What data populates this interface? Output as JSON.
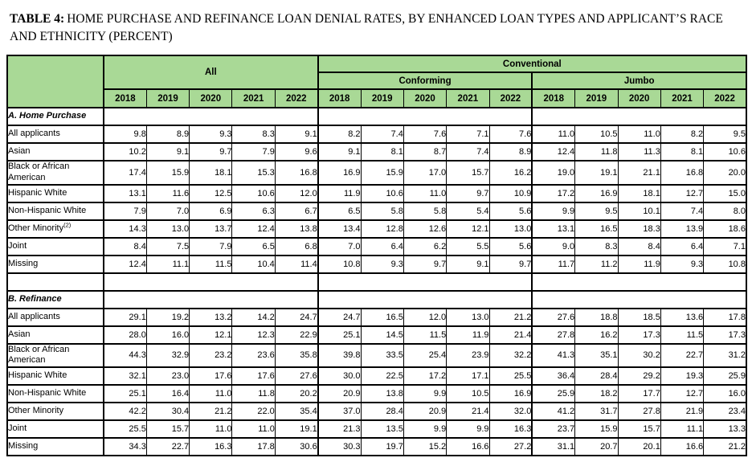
{
  "title": {
    "prefix": "TABLE 4:",
    "text": "HOME PURCHASE AND REFINANCE LOAN DENIAL RATES, BY ENHANCED LOAN TYPES AND APPLICANT’S RACE AND ETHNICITY (PERCENT)"
  },
  "colors": {
    "header_green": "#a9d996",
    "border": "#000000",
    "background": "#ffffff"
  },
  "header": {
    "all": "All",
    "conventional": "Conventional",
    "conforming": "Conforming",
    "jumbo": "Jumbo"
  },
  "chart_data": {
    "type": "table",
    "title": "TABLE 4: HOME PURCHASE AND REFINANCE LOAN DENIAL RATES, BY ENHANCED LOAN TYPES AND APPLICANT’S RACE AND ETHNICITY (PERCENT)",
    "col_groups": [
      {
        "group": "All",
        "parent": null,
        "years": [
          "2018",
          "2019",
          "2020",
          "2021",
          "2022"
        ]
      },
      {
        "group": "Conforming",
        "parent": "Conventional",
        "years": [
          "2018",
          "2019",
          "2020",
          "2021",
          "2022"
        ]
      },
      {
        "group": "Jumbo",
        "parent": "Conventional",
        "years": [
          "2018",
          "2019",
          "2020",
          "2021",
          "2022"
        ]
      }
    ],
    "sections": [
      {
        "label": "A. Home Purchase",
        "rows": [
          {
            "label": "All applicants",
            "footnote": "",
            "values": {
              "all": [
                "9.8",
                "8.9",
                "9.3",
                "8.3",
                "9.1"
              ],
              "conforming": [
                "8.2",
                "7.4",
                "7.6",
                "7.1",
                "7.6"
              ],
              "jumbo": [
                "11.0",
                "10.5",
                "11.0",
                "8.2",
                "9.5"
              ]
            }
          },
          {
            "label": "Asian",
            "footnote": "",
            "values": {
              "all": [
                "10.2",
                "9.1",
                "9.7",
                "7.9",
                "9.6"
              ],
              "conforming": [
                "9.1",
                "8.1",
                "8.7",
                "7.4",
                "8.9"
              ],
              "jumbo": [
                "12.4",
                "11.8",
                "11.3",
                "8.1",
                "10.6"
              ]
            }
          },
          {
            "label": "Black or African American",
            "footnote": "",
            "values": {
              "all": [
                "17.4",
                "15.9",
                "18.1",
                "15.3",
                "16.8"
              ],
              "conforming": [
                "16.9",
                "15.9",
                "17.0",
                "15.7",
                "16.2"
              ],
              "jumbo": [
                "19.0",
                "19.1",
                "21.1",
                "16.8",
                "20.0"
              ]
            }
          },
          {
            "label": "Hispanic White",
            "footnote": "",
            "values": {
              "all": [
                "13.1",
                "11.6",
                "12.5",
                "10.6",
                "12.0"
              ],
              "conforming": [
                "11.9",
                "10.6",
                "11.0",
                "9.7",
                "10.9"
              ],
              "jumbo": [
                "17.2",
                "16.9",
                "18.1",
                "12.7",
                "15.0"
              ]
            }
          },
          {
            "label": "Non-Hispanic White",
            "footnote": "",
            "values": {
              "all": [
                "7.9",
                "7.0",
                "6.9",
                "6.3",
                "6.7"
              ],
              "conforming": [
                "6.5",
                "5.8",
                "5.8",
                "5.4",
                "5.6"
              ],
              "jumbo": [
                "9.9",
                "9.5",
                "10.1",
                "7.4",
                "8.0"
              ]
            }
          },
          {
            "label": "Other Minority",
            "footnote": "(2)",
            "values": {
              "all": [
                "14.3",
                "13.0",
                "13.7",
                "12.4",
                "13.8"
              ],
              "conforming": [
                "13.4",
                "12.8",
                "12.6",
                "12.1",
                "13.0"
              ],
              "jumbo": [
                "13.1",
                "16.5",
                "18.3",
                "13.9",
                "18.6"
              ]
            }
          },
          {
            "label": "Joint",
            "footnote": "",
            "values": {
              "all": [
                "8.4",
                "7.5",
                "7.9",
                "6.5",
                "6.8"
              ],
              "conforming": [
                "7.0",
                "6.4",
                "6.2",
                "5.5",
                "5.6"
              ],
              "jumbo": [
                "9.0",
                "8.3",
                "8.4",
                "6.4",
                "7.1"
              ]
            }
          },
          {
            "label": "Missing",
            "footnote": "",
            "values": {
              "all": [
                "12.4",
                "11.1",
                "11.5",
                "10.4",
                "11.4"
              ],
              "conforming": [
                "10.8",
                "9.3",
                "9.7",
                "9.1",
                "9.7"
              ],
              "jumbo": [
                "11.7",
                "11.2",
                "11.9",
                "9.3",
                "10.8"
              ]
            }
          }
        ]
      },
      {
        "label": "B. Refinance",
        "rows": [
          {
            "label": "All applicants",
            "footnote": "",
            "values": {
              "all": [
                "29.1",
                "19.2",
                "13.2",
                "14.2",
                "24.7"
              ],
              "conforming": [
                "24.7",
                "16.5",
                "12.0",
                "13.0",
                "21.2"
              ],
              "jumbo": [
                "27.6",
                "18.8",
                "18.5",
                "13.6",
                "17.8"
              ]
            }
          },
          {
            "label": "Asian",
            "footnote": "",
            "values": {
              "all": [
                "28.0",
                "16.0",
                "12.1",
                "12.3",
                "22.9"
              ],
              "conforming": [
                "25.1",
                "14.5",
                "11.5",
                "11.9",
                "21.4"
              ],
              "jumbo": [
                "27.8",
                "16.2",
                "17.3",
                "11.5",
                "17.3"
              ]
            }
          },
          {
            "label": "Black or African American",
            "footnote": "",
            "values": {
              "all": [
                "44.3",
                "32.9",
                "23.2",
                "23.6",
                "35.8"
              ],
              "conforming": [
                "39.8",
                "33.5",
                "25.4",
                "23.9",
                "32.2"
              ],
              "jumbo": [
                "41.3",
                "35.1",
                "30.2",
                "22.7",
                "31.2"
              ]
            }
          },
          {
            "label": "Hispanic White",
            "footnote": "",
            "values": {
              "all": [
                "32.1",
                "23.0",
                "17.6",
                "17.6",
                "27.6"
              ],
              "conforming": [
                "30.0",
                "22.5",
                "17.2",
                "17.1",
                "25.5"
              ],
              "jumbo": [
                "36.4",
                "28.4",
                "29.2",
                "19.3",
                "25.9"
              ]
            }
          },
          {
            "label": "Non-Hispanic White",
            "footnote": "",
            "values": {
              "all": [
                "25.1",
                "16.4",
                "11.0",
                "11.8",
                "20.2"
              ],
              "conforming": [
                "20.9",
                "13.8",
                "9.9",
                "10.5",
                "16.9"
              ],
              "jumbo": [
                "25.9",
                "18.2",
                "17.7",
                "12.7",
                "16.0"
              ]
            }
          },
          {
            "label": "Other Minority",
            "footnote": "",
            "values": {
              "all": [
                "42.2",
                "30.4",
                "21.2",
                "22.0",
                "35.4"
              ],
              "conforming": [
                "37.0",
                "28.4",
                "20.9",
                "21.4",
                "32.0"
              ],
              "jumbo": [
                "41.2",
                "31.7",
                "27.8",
                "21.9",
                "23.4"
              ]
            }
          },
          {
            "label": "Joint",
            "footnote": "",
            "values": {
              "all": [
                "25.5",
                "15.7",
                "11.0",
                "11.0",
                "19.1"
              ],
              "conforming": [
                "21.3",
                "13.5",
                "9.9",
                "9.9",
                "16.3"
              ],
              "jumbo": [
                "23.7",
                "15.9",
                "15.7",
                "11.1",
                "13.3"
              ]
            }
          },
          {
            "label": "Missing",
            "footnote": "",
            "values": {
              "all": [
                "34.3",
                "22.7",
                "16.3",
                "17.8",
                "30.6"
              ],
              "conforming": [
                "30.3",
                "19.7",
                "15.2",
                "16.6",
                "27.2"
              ],
              "jumbo": [
                "31.1",
                "20.7",
                "20.1",
                "16.6",
                "21.2"
              ]
            }
          }
        ]
      }
    ]
  }
}
